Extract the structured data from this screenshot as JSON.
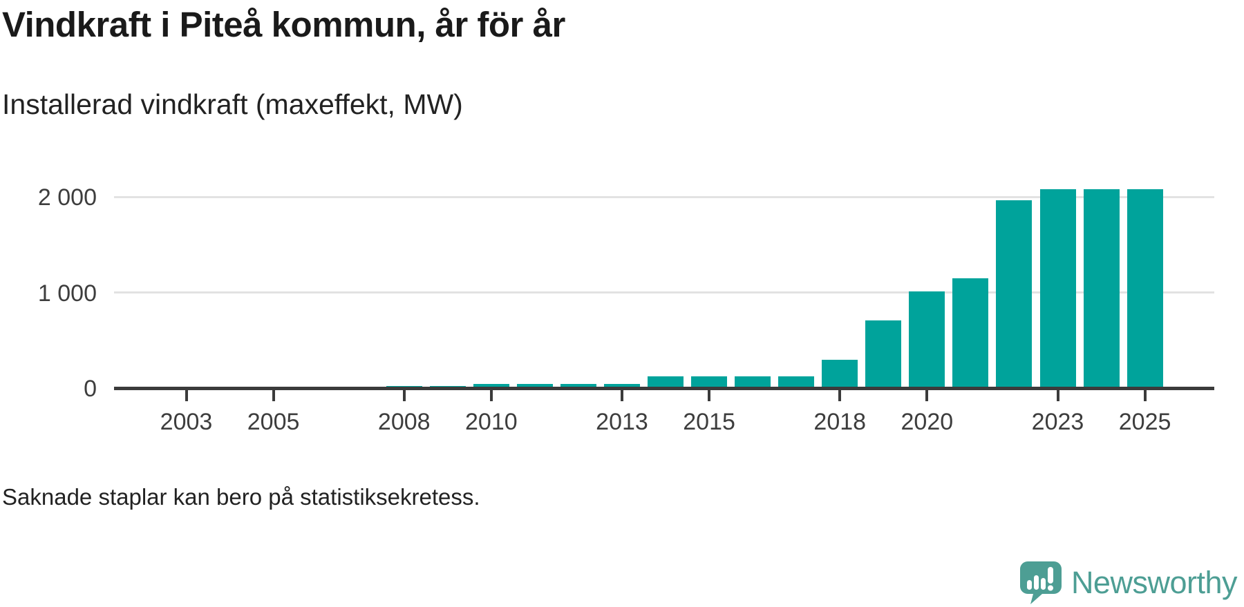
{
  "header": {
    "title": "Vindkraft i Piteå kommun, år för år",
    "subtitle": "Installerad vindkraft (maxeffekt, MW)"
  },
  "footer": {
    "note": "Saknade staplar kan bero på statistiksekretess.",
    "brand_name": "Newsworthy"
  },
  "colors": {
    "bar": "#00a39b",
    "axis": "#3b3b3b",
    "grid": "#e2e2e2",
    "title_text": "#1a1a1a",
    "body_text": "#222222",
    "tick_label": "#3d3d3d",
    "brand_teal": "#4d9e94"
  },
  "chart_data": {
    "type": "bar",
    "title": "Vindkraft i Piteå kommun, år för år",
    "subtitle": "Installerad vindkraft (maxeffekt, MW)",
    "xlabel": "",
    "ylabel": "Installerad vindkraft (maxeffekt, MW)",
    "note": "Saknade staplar kan bero på statistiksekretess.",
    "categories": [
      2003,
      2004,
      2005,
      2006,
      2007,
      2008,
      2009,
      2010,
      2011,
      2012,
      2013,
      2014,
      2015,
      2016,
      2017,
      2018,
      2019,
      2020,
      2021,
      2022,
      2023,
      2024,
      2025
    ],
    "values": [
      null,
      null,
      null,
      null,
      null,
      24,
      24,
      46,
      46,
      46,
      46,
      125,
      125,
      125,
      125,
      295,
      710,
      1010,
      1150,
      1965,
      2080,
      2080,
      2080
    ],
    "missing_years_reason": "statistiksekretess",
    "x_tick_labels": [
      "2003",
      "2005",
      "2008",
      "2010",
      "2013",
      "2015",
      "2018",
      "2020",
      "2023",
      "2025"
    ],
    "y_ticks": [
      {
        "value": 0,
        "label": "0"
      },
      {
        "value": 1000,
        "label": "1 000"
      },
      {
        "value": 2000,
        "label": "2 000"
      }
    ],
    "ylim": [
      0,
      2100
    ],
    "grid": "horizontal",
    "legend": "none",
    "bar_color": "#00a39b"
  }
}
